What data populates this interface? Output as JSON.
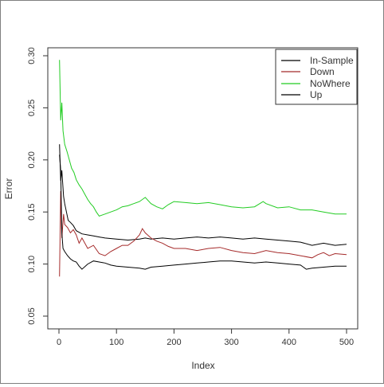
{
  "chart_data": {
    "type": "line",
    "title": "",
    "xlabel": "Index",
    "ylabel": "Error",
    "xlim": [
      0,
      500
    ],
    "ylim": [
      0.05,
      0.3
    ],
    "x_ticks": [
      0,
      100,
      200,
      300,
      400,
      500
    ],
    "y_ticks": [
      0.05,
      0.1,
      0.15,
      0.2,
      0.25,
      0.3
    ],
    "x_tick_labels": [
      "0",
      "100",
      "200",
      "300",
      "400",
      "500"
    ],
    "y_tick_labels": [
      "0.05",
      "0.10",
      "0.15",
      "0.20",
      "0.25",
      "0.30"
    ],
    "grid": false,
    "legend_position": "top-right",
    "series": [
      {
        "name": "In-Sample",
        "color": "#000000",
        "points": [
          [
            1,
            0.215
          ],
          [
            3,
            0.18
          ],
          [
            5,
            0.19
          ],
          [
            8,
            0.165
          ],
          [
            10,
            0.158
          ],
          [
            13,
            0.15
          ],
          [
            16,
            0.142
          ],
          [
            20,
            0.14
          ],
          [
            25,
            0.137
          ],
          [
            30,
            0.132
          ],
          [
            40,
            0.129
          ],
          [
            50,
            0.128
          ],
          [
            60,
            0.127
          ],
          [
            70,
            0.126
          ],
          [
            80,
            0.125
          ],
          [
            100,
            0.124
          ],
          [
            120,
            0.123
          ],
          [
            140,
            0.124
          ],
          [
            150,
            0.125
          ],
          [
            160,
            0.124
          ],
          [
            180,
            0.125
          ],
          [
            200,
            0.124
          ],
          [
            220,
            0.125
          ],
          [
            240,
            0.126
          ],
          [
            260,
            0.125
          ],
          [
            280,
            0.126
          ],
          [
            300,
            0.125
          ],
          [
            320,
            0.124
          ],
          [
            340,
            0.125
          ],
          [
            360,
            0.124
          ],
          [
            380,
            0.123
          ],
          [
            400,
            0.122
          ],
          [
            420,
            0.121
          ],
          [
            440,
            0.118
          ],
          [
            460,
            0.12
          ],
          [
            480,
            0.118
          ],
          [
            500,
            0.119
          ]
        ]
      },
      {
        "name": "Down",
        "color": "#a52a2a",
        "points": [
          [
            1,
            0.088
          ],
          [
            3,
            0.17
          ],
          [
            5,
            0.125
          ],
          [
            8,
            0.148
          ],
          [
            10,
            0.138
          ],
          [
            15,
            0.135
          ],
          [
            20,
            0.13
          ],
          [
            25,
            0.133
          ],
          [
            30,
            0.128
          ],
          [
            35,
            0.12
          ],
          [
            40,
            0.125
          ],
          [
            45,
            0.12
          ],
          [
            50,
            0.115
          ],
          [
            60,
            0.118
          ],
          [
            70,
            0.11
          ],
          [
            80,
            0.108
          ],
          [
            90,
            0.112
          ],
          [
            100,
            0.115
          ],
          [
            110,
            0.118
          ],
          [
            120,
            0.118
          ],
          [
            130,
            0.122
          ],
          [
            140,
            0.128
          ],
          [
            145,
            0.134
          ],
          [
            150,
            0.13
          ],
          [
            160,
            0.125
          ],
          [
            170,
            0.122
          ],
          [
            180,
            0.12
          ],
          [
            190,
            0.117
          ],
          [
            200,
            0.115
          ],
          [
            220,
            0.115
          ],
          [
            240,
            0.113
          ],
          [
            260,
            0.115
          ],
          [
            280,
            0.116
          ],
          [
            300,
            0.113
          ],
          [
            320,
            0.111
          ],
          [
            340,
            0.11
          ],
          [
            360,
            0.113
          ],
          [
            380,
            0.111
          ],
          [
            400,
            0.11
          ],
          [
            420,
            0.108
          ],
          [
            440,
            0.106
          ],
          [
            450,
            0.109
          ],
          [
            460,
            0.111
          ],
          [
            470,
            0.108
          ],
          [
            480,
            0.11
          ],
          [
            500,
            0.109
          ]
        ]
      },
      {
        "name": "NoWhere",
        "color": "#22cc22",
        "points": [
          [
            1,
            0.296
          ],
          [
            3,
            0.238
          ],
          [
            5,
            0.255
          ],
          [
            7,
            0.228
          ],
          [
            10,
            0.215
          ],
          [
            14,
            0.208
          ],
          [
            18,
            0.2
          ],
          [
            22,
            0.192
          ],
          [
            26,
            0.188
          ],
          [
            30,
            0.181
          ],
          [
            35,
            0.176
          ],
          [
            40,
            0.172
          ],
          [
            45,
            0.167
          ],
          [
            50,
            0.162
          ],
          [
            55,
            0.158
          ],
          [
            60,
            0.155
          ],
          [
            65,
            0.15
          ],
          [
            70,
            0.146
          ],
          [
            80,
            0.148
          ],
          [
            90,
            0.15
          ],
          [
            100,
            0.152
          ],
          [
            110,
            0.155
          ],
          [
            120,
            0.156
          ],
          [
            130,
            0.158
          ],
          [
            140,
            0.16
          ],
          [
            150,
            0.164
          ],
          [
            160,
            0.158
          ],
          [
            170,
            0.155
          ],
          [
            180,
            0.153
          ],
          [
            190,
            0.157
          ],
          [
            200,
            0.16
          ],
          [
            220,
            0.159
          ],
          [
            240,
            0.158
          ],
          [
            260,
            0.159
          ],
          [
            280,
            0.157
          ],
          [
            300,
            0.155
          ],
          [
            320,
            0.154
          ],
          [
            340,
            0.155
          ],
          [
            355,
            0.16
          ],
          [
            360,
            0.158
          ],
          [
            380,
            0.154
          ],
          [
            400,
            0.155
          ],
          [
            420,
            0.152
          ],
          [
            440,
            0.152
          ],
          [
            460,
            0.15
          ],
          [
            480,
            0.148
          ],
          [
            500,
            0.148
          ]
        ]
      },
      {
        "name": "Up",
        "color": "#000000",
        "points": [
          [
            1,
            0.205
          ],
          [
            3,
            0.19
          ],
          [
            5,
            0.13
          ],
          [
            7,
            0.115
          ],
          [
            10,
            0.112
          ],
          [
            15,
            0.108
          ],
          [
            20,
            0.105
          ],
          [
            25,
            0.103
          ],
          [
            30,
            0.102
          ],
          [
            35,
            0.098
          ],
          [
            40,
            0.095
          ],
          [
            50,
            0.1
          ],
          [
            60,
            0.103
          ],
          [
            70,
            0.102
          ],
          [
            80,
            0.101
          ],
          [
            90,
            0.099
          ],
          [
            100,
            0.098
          ],
          [
            120,
            0.097
          ],
          [
            140,
            0.096
          ],
          [
            150,
            0.095
          ],
          [
            160,
            0.097
          ],
          [
            180,
            0.098
          ],
          [
            200,
            0.099
          ],
          [
            220,
            0.1
          ],
          [
            240,
            0.101
          ],
          [
            260,
            0.102
          ],
          [
            280,
            0.103
          ],
          [
            300,
            0.103
          ],
          [
            320,
            0.102
          ],
          [
            340,
            0.101
          ],
          [
            360,
            0.102
          ],
          [
            380,
            0.101
          ],
          [
            400,
            0.1
          ],
          [
            420,
            0.099
          ],
          [
            430,
            0.095
          ],
          [
            440,
            0.096
          ],
          [
            460,
            0.097
          ],
          [
            480,
            0.098
          ],
          [
            500,
            0.098
          ]
        ]
      }
    ]
  }
}
